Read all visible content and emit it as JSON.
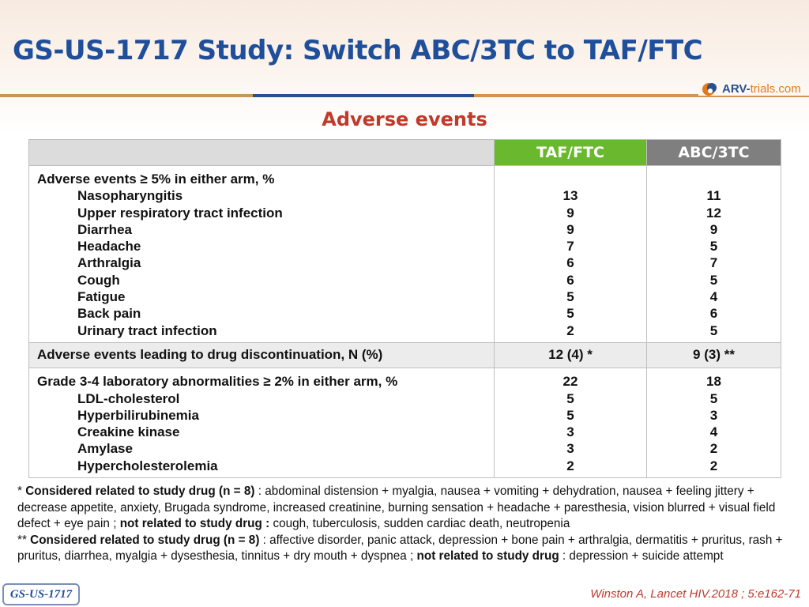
{
  "slide": {
    "title": "GS-US-1717 Study: Switch ABC/3TC to TAF/FTC",
    "section_title": "Adverse events",
    "logo": {
      "part1": "ARV-",
      "part2": "trials",
      "part3": ".com"
    }
  },
  "table": {
    "columns": [
      "TAF/FTC",
      "ABC/3TC"
    ],
    "groups": [
      {
        "header": "Adverse events ≥ 5% in either arm, %",
        "header_values": [
          "",
          ""
        ],
        "rows": [
          {
            "label": "Nasopharyngitis",
            "values": [
              "13",
              "11"
            ]
          },
          {
            "label": "Upper respiratory tract infection",
            "values": [
              "9",
              "12"
            ]
          },
          {
            "label": "Diarrhea",
            "values": [
              "9",
              "9"
            ]
          },
          {
            "label": "Headache",
            "values": [
              "7",
              "5"
            ]
          },
          {
            "label": "Arthralgia",
            "values": [
              "6",
              "7"
            ]
          },
          {
            "label": "Cough",
            "values": [
              "6",
              "5"
            ]
          },
          {
            "label": "Fatigue",
            "values": [
              "5",
              "4"
            ]
          },
          {
            "label": "Back pain",
            "values": [
              "5",
              "6"
            ]
          },
          {
            "label": "Urinary tract infection",
            "values": [
              "2",
              "5"
            ]
          }
        ]
      },
      {
        "header": "Adverse events leading to drug discontinuation, N (%)",
        "header_values": [
          "12 (4) *",
          "9 (3) **"
        ],
        "rows": []
      },
      {
        "header": "Grade 3-4 laboratory abnormalities ≥ 2% in either arm, %",
        "header_values": [
          "22",
          "18"
        ],
        "rows": [
          {
            "label": "LDL-cholesterol",
            "values": [
              "5",
              "5"
            ]
          },
          {
            "label": "Hyperbilirubinemia",
            "values": [
              "5",
              "3"
            ]
          },
          {
            "label": "Creakine kinase",
            "values": [
              "3",
              "4"
            ]
          },
          {
            "label": "Amylase",
            "values": [
              "3",
              "2"
            ]
          },
          {
            "label": "Hypercholesterolemia",
            "values": [
              "2",
              "2"
            ]
          }
        ]
      }
    ]
  },
  "footnotes": {
    "f1_mark": "* ",
    "f1_related_label": "Considered related to study drug (n = 8)",
    "f1_related_text": " : abdominal distension + myalgia, nausea + vomiting + dehydration, nausea + feeling jittery + decrease appetite, anxiety, Brugada syndrome, increased creatinine, burning sensation + headache + paresthesia, vision blurred + visual field defect + eye pain ; ",
    "f1_not_label": "not related to study drug :",
    "f1_not_text": " cough, tuberculosis, sudden cardiac death, neutropenia",
    "f2_mark": "** ",
    "f2_related_label": "Considered related to study drug (n = 8)",
    "f2_related_text": " : affective disorder, panic attack, depression + bone pain + arthralgia, dermatitis + pruritus, rash + pruritus, diarrhea, myalgia + dysesthesia, tinnitus + dry mouth + dyspnea ; ",
    "f2_not_label": "not related to study drug",
    "f2_not_text": " : depression + suicide attempt"
  },
  "badge": "GS-US-1717",
  "citation": "Winston A, Lancet HIV.2018 ; 5:e162-71",
  "colors": {
    "title": "#1f4e9a",
    "accent_red": "#c0392b",
    "taf_header": "#6ab82e",
    "abc_header": "#7f7f7f"
  }
}
